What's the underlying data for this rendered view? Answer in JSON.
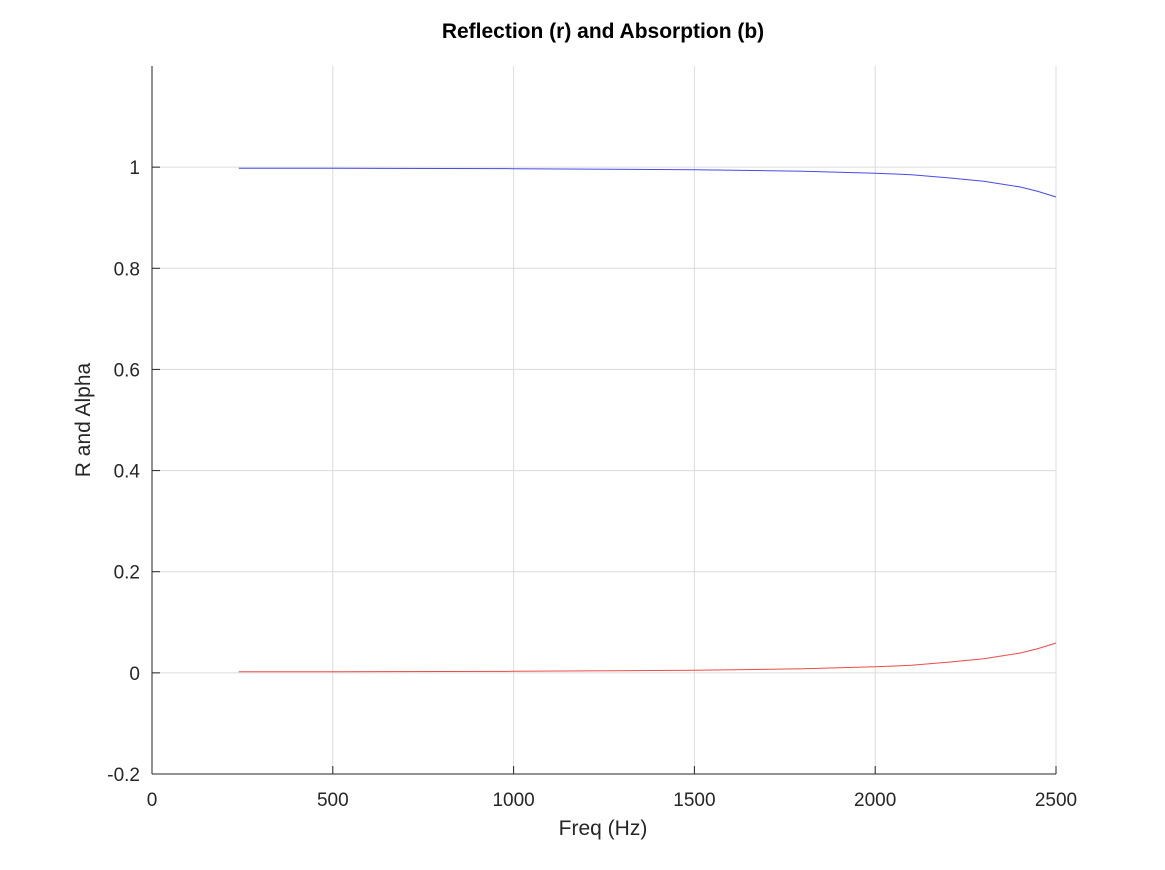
{
  "chart_data": {
    "type": "line",
    "title": "Reflection (r) and Absorption (b)",
    "xlabel": "Freq (Hz)",
    "ylabel": "R and Alpha",
    "xlim": [
      0,
      2500
    ],
    "ylim": [
      -0.2,
      1.2
    ],
    "xticks": [
      0,
      500,
      1000,
      1500,
      2000,
      2500
    ],
    "xtick_labels": [
      "0",
      "500",
      "1000",
      "1500",
      "2000",
      "2500"
    ],
    "yticks": [
      -0.2,
      0,
      0.2,
      0.4,
      0.6,
      0.8,
      1
    ],
    "ytick_labels": [
      "-0.2",
      "0",
      "0.2",
      "0.4",
      "0.6",
      "0.8",
      "1"
    ],
    "grid": true,
    "legend": "none",
    "x": [
      240,
      500,
      1000,
      1500,
      1800,
      2000,
      2100,
      2200,
      2300,
      2400,
      2450,
      2500
    ],
    "series": [
      {
        "color": "#4a4ae8",
        "values": [
          0.998,
          0.998,
          0.997,
          0.995,
          0.992,
          0.988,
          0.985,
          0.979,
          0.972,
          0.961,
          0.952,
          0.941
        ]
      },
      {
        "color": "#ef4a4a",
        "values": [
          0.002,
          0.002,
          0.003,
          0.005,
          0.008,
          0.012,
          0.015,
          0.021,
          0.028,
          0.039,
          0.048,
          0.059
        ]
      }
    ]
  }
}
